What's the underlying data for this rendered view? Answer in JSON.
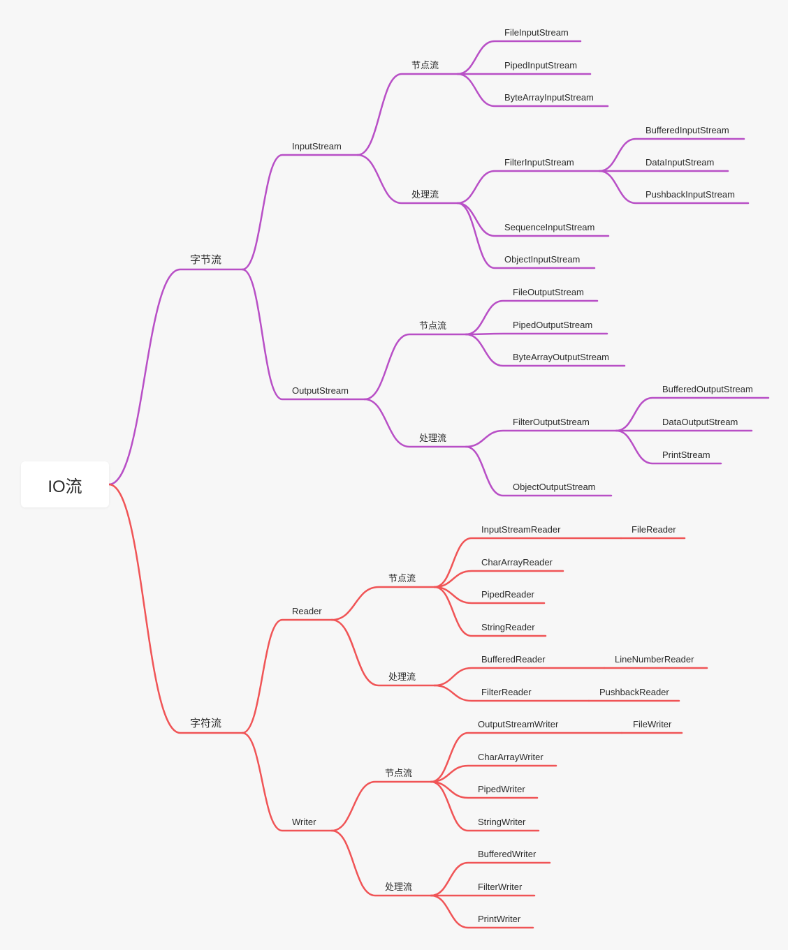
{
  "root": {
    "label": "IO流"
  },
  "colors": {
    "byte_branch": "#b84fc6",
    "char_branch": "#f05456"
  },
  "mindmap": {
    "byte": {
      "label": "字节流",
      "input_stream": {
        "label": "InputStream",
        "node_stream": {
          "label": "节点流",
          "items": [
            "FileInputStream",
            "PipedInputStream",
            "ByteArrayInputStream"
          ]
        },
        "processing_stream": {
          "label": "处理流",
          "filter": {
            "label": "FilterInputStream",
            "items": [
              "BufferedInputStream",
              "DataInputStream",
              "PushbackInputStream"
            ]
          },
          "items": [
            "SequenceInputStream",
            "ObjectInputStream"
          ]
        }
      },
      "output_stream": {
        "label": "OutputStream",
        "node_stream": {
          "label": "节点流",
          "items": [
            "FileOutputStream",
            "PipedOutputStream",
            "ByteArrayOutputStream"
          ]
        },
        "processing_stream": {
          "label": "处理流",
          "filter": {
            "label": "FilterOutputStream",
            "items": [
              "BufferedOutputStream",
              "DataOutputStream",
              "PrintStream"
            ]
          },
          "items": [
            "ObjectOutputStream"
          ]
        }
      }
    },
    "char": {
      "label": "字符流",
      "reader": {
        "label": "Reader",
        "node_stream": {
          "label": "节点流",
          "items": [
            {
              "label": "InputStreamReader",
              "child": "FileReader"
            },
            {
              "label": "CharArrayReader"
            },
            {
              "label": "PipedReader"
            },
            {
              "label": "StringReader"
            }
          ]
        },
        "processing_stream": {
          "label": "处理流",
          "items": [
            {
              "label": "BufferedReader",
              "child": "LineNumberReader"
            },
            {
              "label": "FilterReader",
              "child": "PushbackReader"
            }
          ]
        }
      },
      "writer": {
        "label": "Writer",
        "node_stream": {
          "label": "节点流",
          "items": [
            {
              "label": "OutputStreamWriter",
              "child": "FileWriter"
            },
            {
              "label": "CharArrayWriter"
            },
            {
              "label": "PipedWriter"
            },
            {
              "label": "StringWriter"
            }
          ]
        },
        "processing_stream": {
          "label": "处理流",
          "items": [
            {
              "label": "BufferedWriter"
            },
            {
              "label": "FilterWriter"
            },
            {
              "label": "PrintWriter"
            }
          ]
        }
      }
    }
  }
}
